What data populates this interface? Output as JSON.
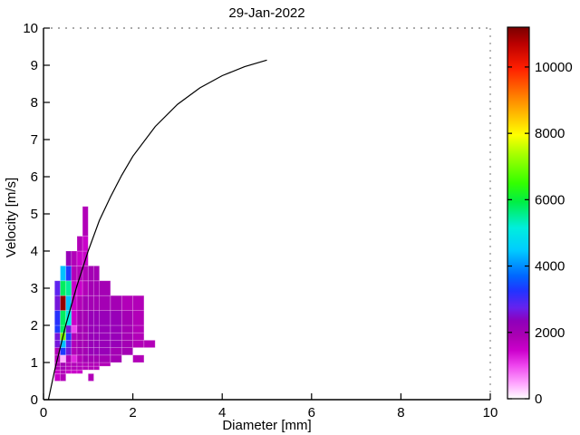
{
  "title": "29-Jan-2022",
  "chart_data": {
    "type": "heatmap",
    "title": "29-Jan-2022",
    "xlabel": "Diameter [mm]",
    "ylabel": "Velocity [m/s]",
    "xlim": [
      0,
      10
    ],
    "ylim": [
      0,
      10
    ],
    "x_ticks": [
      0,
      2,
      4,
      6,
      8,
      10
    ],
    "y_ticks": [
      0,
      1,
      2,
      3,
      4,
      5,
      6,
      7,
      8,
      9,
      10
    ],
    "grid": false,
    "colorbar": {
      "position": "right",
      "ticks": [
        0,
        2000,
        4000,
        6000,
        8000,
        10000
      ],
      "cmax": 11200,
      "colormap_stops": [
        [
          0.0,
          "#ffffff"
        ],
        [
          0.04,
          "#ffa8ff"
        ],
        [
          0.09,
          "#ee44ee"
        ],
        [
          0.13,
          "#cc00cc"
        ],
        [
          0.17,
          "#aa00b2"
        ],
        [
          0.21,
          "#8e00bb"
        ],
        [
          0.245,
          "#6622ee"
        ],
        [
          0.29,
          "#2233ff"
        ],
        [
          0.33,
          "#0066ff"
        ],
        [
          0.4,
          "#00ccff"
        ],
        [
          0.46,
          "#00eedd"
        ],
        [
          0.53,
          "#00ee44"
        ],
        [
          0.58,
          "#33ff00"
        ],
        [
          0.66,
          "#aaff00"
        ],
        [
          0.71,
          "#ffff00"
        ],
        [
          0.8,
          "#ff9100"
        ],
        [
          0.89,
          "#ff1e00"
        ],
        [
          0.955,
          "#bb0000"
        ],
        [
          1.0,
          "#7a0000"
        ]
      ]
    },
    "cells_format": [
      "d_min_mm",
      "d_max_mm",
      "v_min_ms",
      "v_max_ms",
      "count"
    ],
    "cells": [
      [
        0.25,
        0.375,
        0.5,
        0.7,
        1500
      ],
      [
        0.25,
        0.375,
        0.7,
        0.8,
        1500
      ],
      [
        0.25,
        0.375,
        0.8,
        0.9,
        1800
      ],
      [
        0.25,
        0.375,
        0.9,
        1.0,
        1800
      ],
      [
        0.25,
        0.375,
        1.0,
        1.2,
        1800
      ],
      [
        0.25,
        0.375,
        1.2,
        1.4,
        1800
      ],
      [
        0.25,
        0.375,
        1.4,
        1.6,
        2600
      ],
      [
        0.25,
        0.375,
        1.6,
        1.8,
        2600
      ],
      [
        0.25,
        0.375,
        1.8,
        2.0,
        3300
      ],
      [
        0.25,
        0.375,
        2.0,
        2.4,
        3200
      ],
      [
        0.25,
        0.375,
        2.4,
        2.8,
        2600
      ],
      [
        0.25,
        0.375,
        2.8,
        3.2,
        2800
      ],
      [
        0.375,
        0.5,
        0.5,
        0.7,
        1800
      ],
      [
        0.375,
        0.5,
        0.7,
        0.8,
        1800
      ],
      [
        0.375,
        0.5,
        0.8,
        0.9,
        2000
      ],
      [
        0.375,
        0.5,
        0.9,
        1.0,
        2000
      ],
      [
        0.375,
        0.5,
        1.0,
        1.2,
        400
      ],
      [
        0.375,
        0.5,
        1.2,
        1.4,
        3300
      ],
      [
        0.375,
        0.5,
        1.4,
        1.6,
        4400
      ],
      [
        0.375,
        0.5,
        1.6,
        1.8,
        7000
      ],
      [
        0.375,
        0.5,
        1.8,
        2.0,
        5800
      ],
      [
        0.375,
        0.5,
        2.0,
        2.4,
        5800
      ],
      [
        0.375,
        0.5,
        2.4,
        2.8,
        11000
      ],
      [
        0.375,
        0.5,
        2.8,
        3.2,
        5800
      ],
      [
        0.375,
        0.5,
        3.2,
        3.6,
        4400
      ],
      [
        0.5,
        0.625,
        0.7,
        0.8,
        1500
      ],
      [
        0.5,
        0.625,
        0.8,
        0.9,
        1800
      ],
      [
        0.5,
        0.625,
        0.9,
        1.0,
        1800
      ],
      [
        0.5,
        0.625,
        1.0,
        1.2,
        1800
      ],
      [
        0.5,
        0.625,
        1.2,
        1.4,
        2600
      ],
      [
        0.5,
        0.625,
        1.4,
        1.6,
        2800
      ],
      [
        0.5,
        0.625,
        1.6,
        1.8,
        3300
      ],
      [
        0.5,
        0.625,
        1.8,
        2.0,
        2600
      ],
      [
        0.5,
        0.625,
        2.0,
        2.4,
        5000
      ],
      [
        0.5,
        0.625,
        2.4,
        2.8,
        4400
      ],
      [
        0.5,
        0.625,
        2.8,
        3.2,
        5500
      ],
      [
        0.5,
        0.625,
        3.2,
        3.6,
        3300
      ],
      [
        0.5,
        0.625,
        3.6,
        4.0,
        2200
      ],
      [
        0.625,
        0.75,
        0.7,
        0.8,
        1500
      ],
      [
        0.625,
        0.75,
        0.8,
        0.9,
        1800
      ],
      [
        0.625,
        0.75,
        0.9,
        1.0,
        1800
      ],
      [
        0.625,
        0.75,
        1.0,
        1.2,
        1200
      ],
      [
        0.625,
        0.75,
        1.2,
        1.4,
        1800
      ],
      [
        0.625,
        0.75,
        1.4,
        1.6,
        1800
      ],
      [
        0.625,
        0.75,
        1.6,
        1.8,
        1800
      ],
      [
        0.625,
        0.75,
        1.8,
        2.0,
        1000
      ],
      [
        0.625,
        0.75,
        2.0,
        2.4,
        1500
      ],
      [
        0.625,
        0.75,
        2.4,
        2.8,
        1500
      ],
      [
        0.625,
        0.75,
        2.8,
        3.2,
        1500
      ],
      [
        0.625,
        0.75,
        3.2,
        3.6,
        1800
      ],
      [
        0.625,
        0.75,
        3.6,
        4.0,
        1800
      ],
      [
        0.75,
        0.875,
        0.7,
        0.8,
        1500
      ],
      [
        0.75,
        0.875,
        0.8,
        0.9,
        1800
      ],
      [
        0.75,
        0.875,
        0.9,
        1.0,
        1800
      ],
      [
        0.75,
        0.875,
        1.0,
        1.2,
        1800
      ],
      [
        0.75,
        0.875,
        1.2,
        1.4,
        2000
      ],
      [
        0.75,
        0.875,
        1.4,
        1.6,
        2000
      ],
      [
        0.75,
        0.875,
        1.6,
        1.8,
        2000
      ],
      [
        0.75,
        0.875,
        1.8,
        2.0,
        2000
      ],
      [
        0.75,
        0.875,
        2.0,
        2.4,
        2000
      ],
      [
        0.75,
        0.875,
        2.4,
        2.8,
        1800
      ],
      [
        0.75,
        0.875,
        2.8,
        3.2,
        1500
      ],
      [
        0.75,
        0.875,
        3.2,
        3.6,
        1800
      ],
      [
        0.75,
        0.875,
        3.6,
        4.0,
        1500
      ],
      [
        0.75,
        0.875,
        4.0,
        4.4,
        1800
      ],
      [
        0.875,
        1.0,
        0.8,
        0.9,
        1800
      ],
      [
        0.875,
        1.0,
        0.9,
        1.0,
        1800
      ],
      [
        0.875,
        1.0,
        1.0,
        1.2,
        2000
      ],
      [
        0.875,
        1.0,
        1.2,
        1.4,
        2000
      ],
      [
        0.875,
        1.0,
        1.4,
        1.6,
        2000
      ],
      [
        0.875,
        1.0,
        1.6,
        1.8,
        2000
      ],
      [
        0.875,
        1.0,
        1.8,
        2.0,
        2000
      ],
      [
        0.875,
        1.0,
        2.0,
        2.4,
        2000
      ],
      [
        0.875,
        1.0,
        2.4,
        2.8,
        2000
      ],
      [
        0.875,
        1.0,
        2.8,
        3.2,
        1800
      ],
      [
        0.875,
        1.0,
        3.2,
        3.6,
        1800
      ],
      [
        0.875,
        1.0,
        3.6,
        4.0,
        1500
      ],
      [
        0.875,
        1.0,
        4.0,
        4.4,
        1500
      ],
      [
        0.875,
        1.0,
        4.4,
        5.2,
        1800
      ],
      [
        1.0,
        1.125,
        0.5,
        0.7,
        1800
      ],
      [
        1.0,
        1.125,
        0.8,
        0.9,
        1800
      ],
      [
        1.0,
        1.125,
        0.9,
        1.0,
        1800
      ],
      [
        1.0,
        1.125,
        1.0,
        1.2,
        2000
      ],
      [
        1.0,
        1.125,
        1.2,
        1.4,
        2200
      ],
      [
        1.0,
        1.125,
        1.4,
        1.6,
        2200
      ],
      [
        1.0,
        1.125,
        1.6,
        1.8,
        2200
      ],
      [
        1.0,
        1.125,
        1.8,
        2.0,
        2200
      ],
      [
        1.0,
        1.125,
        2.0,
        2.4,
        2200
      ],
      [
        1.0,
        1.125,
        2.4,
        2.8,
        2000
      ],
      [
        1.0,
        1.125,
        2.8,
        3.2,
        2000
      ],
      [
        1.0,
        1.125,
        3.2,
        3.6,
        2000
      ],
      [
        1.125,
        1.25,
        0.8,
        0.9,
        1800
      ],
      [
        1.125,
        1.25,
        0.9,
        1.0,
        1800
      ],
      [
        1.125,
        1.25,
        1.0,
        1.2,
        2000
      ],
      [
        1.125,
        1.25,
        1.2,
        1.4,
        2200
      ],
      [
        1.125,
        1.25,
        1.4,
        1.6,
        2200
      ],
      [
        1.125,
        1.25,
        1.6,
        1.8,
        2200
      ],
      [
        1.125,
        1.25,
        1.8,
        2.0,
        2200
      ],
      [
        1.125,
        1.25,
        2.0,
        2.4,
        2200
      ],
      [
        1.125,
        1.25,
        2.4,
        2.8,
        2000
      ],
      [
        1.125,
        1.25,
        2.8,
        3.2,
        2000
      ],
      [
        1.125,
        1.25,
        3.2,
        3.6,
        2000
      ],
      [
        1.25,
        1.5,
        0.9,
        1.0,
        1800
      ],
      [
        1.25,
        1.5,
        1.0,
        1.2,
        2000
      ],
      [
        1.25,
        1.5,
        1.2,
        1.4,
        2200
      ],
      [
        1.25,
        1.5,
        1.4,
        1.6,
        2200
      ],
      [
        1.25,
        1.5,
        1.6,
        1.8,
        2200
      ],
      [
        1.25,
        1.5,
        1.8,
        2.0,
        2200
      ],
      [
        1.25,
        1.5,
        2.0,
        2.4,
        2200
      ],
      [
        1.25,
        1.5,
        2.4,
        2.8,
        2000
      ],
      [
        1.25,
        1.5,
        2.8,
        3.2,
        2000
      ],
      [
        1.5,
        1.75,
        1.0,
        1.2,
        2000
      ],
      [
        1.5,
        1.75,
        1.2,
        1.4,
        2000
      ],
      [
        1.5,
        1.75,
        1.4,
        1.6,
        2200
      ],
      [
        1.5,
        1.75,
        1.6,
        1.8,
        2200
      ],
      [
        1.5,
        1.75,
        1.8,
        2.0,
        2200
      ],
      [
        1.5,
        1.75,
        2.0,
        2.4,
        2200
      ],
      [
        1.5,
        1.75,
        2.4,
        2.8,
        2000
      ],
      [
        1.75,
        2.0,
        1.2,
        1.4,
        2000
      ],
      [
        1.75,
        2.0,
        1.4,
        1.6,
        2000
      ],
      [
        1.75,
        2.0,
        1.6,
        1.8,
        2000
      ],
      [
        1.75,
        2.0,
        1.8,
        2.0,
        2000
      ],
      [
        1.75,
        2.0,
        2.0,
        2.4,
        2000
      ],
      [
        1.75,
        2.0,
        2.4,
        2.8,
        1800
      ],
      [
        2.0,
        2.25,
        1.0,
        1.2,
        1800
      ],
      [
        2.0,
        2.25,
        1.4,
        1.6,
        1800
      ],
      [
        2.0,
        2.25,
        1.6,
        1.8,
        1800
      ],
      [
        2.0,
        2.25,
        1.8,
        2.0,
        1800
      ],
      [
        2.0,
        2.25,
        2.0,
        2.4,
        1800
      ],
      [
        2.0,
        2.25,
        2.4,
        2.8,
        1800
      ],
      [
        2.25,
        2.5,
        1.4,
        1.6,
        1800
      ]
    ],
    "curve": {
      "name": "terminal-velocity-curve",
      "color": "#000000",
      "x": [
        0.11,
        0.25,
        0.5,
        0.75,
        1.0,
        1.25,
        1.5,
        1.75,
        2.0,
        2.5,
        3.0,
        3.5,
        4.0,
        4.5,
        5.0
      ],
      "y": [
        0.0,
        0.79,
        2.02,
        3.07,
        4.0,
        4.82,
        5.46,
        6.04,
        6.55,
        7.35,
        7.95,
        8.39,
        8.72,
        8.96,
        9.14
      ]
    }
  }
}
